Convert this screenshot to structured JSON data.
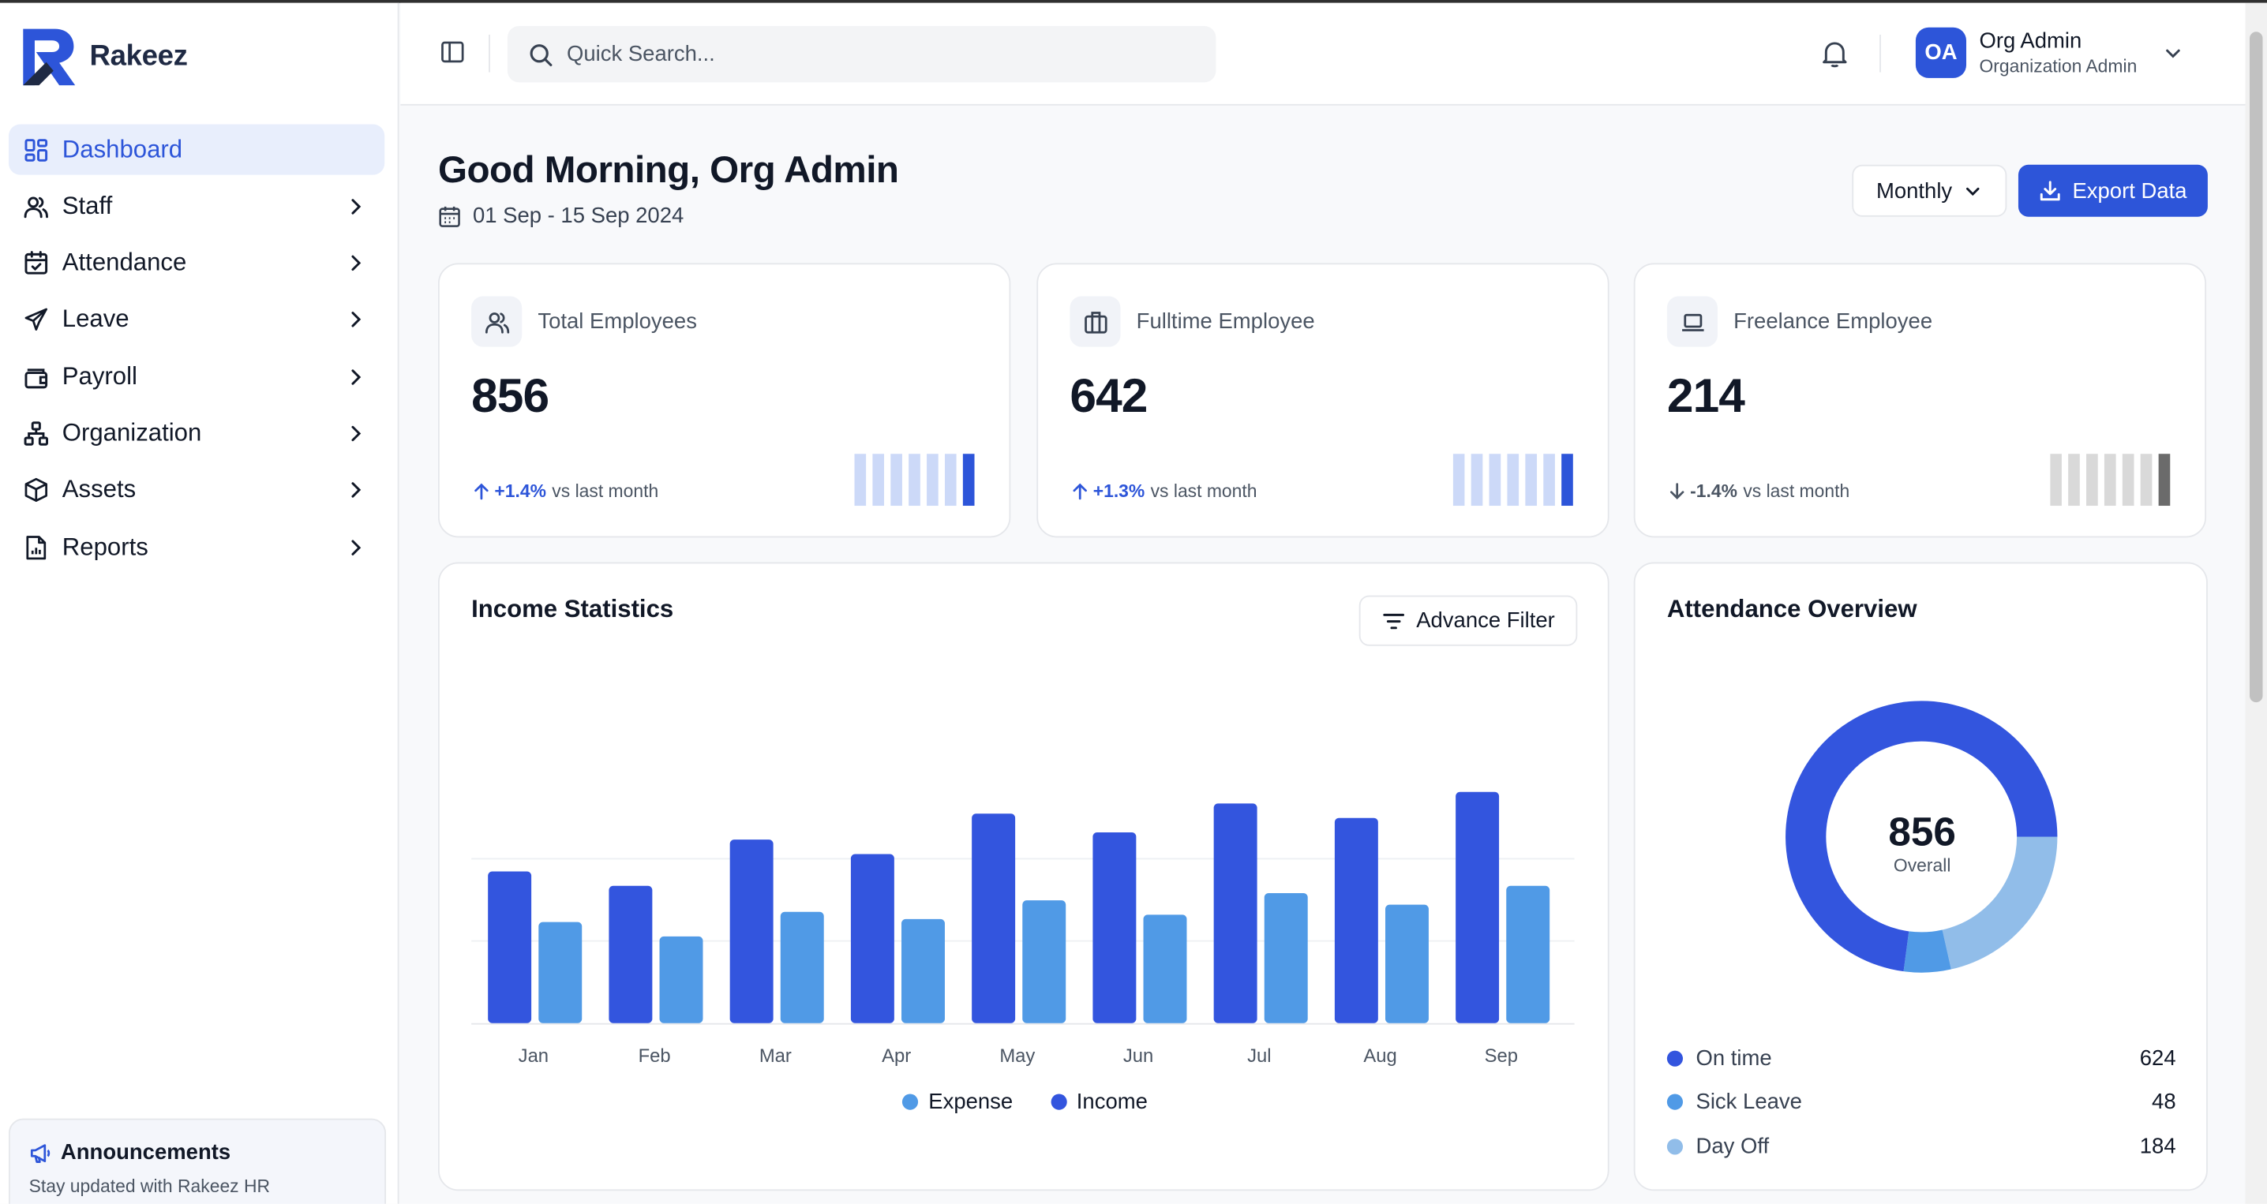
{
  "brand": {
    "name": "Rakeez"
  },
  "sidebar": {
    "items": [
      {
        "label": "Dashboard",
        "icon": "dashboard-icon",
        "active": true
      },
      {
        "label": "Staff",
        "icon": "users-icon"
      },
      {
        "label": "Attendance",
        "icon": "calendar-check-icon"
      },
      {
        "label": "Leave",
        "icon": "plane-icon"
      },
      {
        "label": "Payroll",
        "icon": "wallet-icon"
      },
      {
        "label": "Organization",
        "icon": "org-chart-icon"
      },
      {
        "label": "Assets",
        "icon": "box-icon"
      },
      {
        "label": "Reports",
        "icon": "report-icon"
      }
    ],
    "announcement": {
      "title": "Announcements",
      "subtitle": "Stay updated with Rakeez HR"
    }
  },
  "topbar": {
    "search_placeholder": "Quick Search...",
    "user": {
      "initials": "OA",
      "name": "Org Admin",
      "role": "Organization Admin"
    }
  },
  "header": {
    "greeting": "Good Morning, Org Admin",
    "date_range": "01 Sep - 15 Sep 2024",
    "period": "Monthly",
    "export_label": "Export Data"
  },
  "stats": [
    {
      "label": "Total Employees",
      "value": "856",
      "change": "+1.4%",
      "suffix": "vs last month",
      "direction": "up",
      "color": "#2d55d9",
      "icon": "users-icon"
    },
    {
      "label": "Fulltime Employee",
      "value": "642",
      "change": "+1.3%",
      "suffix": "vs last month",
      "direction": "up",
      "color": "#2d55d9",
      "icon": "briefcase-icon"
    },
    {
      "label": "Freelance Employee",
      "value": "214",
      "change": "-1.4%",
      "suffix": "vs last month",
      "direction": "down",
      "color": "#6b7280",
      "icon": "laptop-icon"
    }
  ],
  "income": {
    "title": "Income Statistics",
    "filter_label": "Advance Filter"
  },
  "chart_data": {
    "type": "bar",
    "categories": [
      "Jan",
      "Feb",
      "Mar",
      "Apr",
      "May",
      "Jun",
      "Jul",
      "Aug",
      "Sep"
    ],
    "series": [
      {
        "name": "Income",
        "color": "#3355de",
        "values": [
          105,
          95,
          127,
          117,
          145,
          132,
          152,
          142,
          160
        ]
      },
      {
        "name": "Expense",
        "color": "#509ae6",
        "values": [
          70,
          60,
          77,
          72,
          85,
          75,
          90,
          82,
          95
        ]
      }
    ],
    "legend": [
      "Expense",
      "Income"
    ],
    "legend_position": "bottom",
    "ylim": [
      0,
      175
    ],
    "grid": true
  },
  "attendance": {
    "title": "Attendance Overview",
    "total": "856",
    "total_label": "Overall",
    "items": [
      {
        "label": "On time",
        "value": 624,
        "color": "#3355de"
      },
      {
        "label": "Sick Leave",
        "value": 48,
        "color": "#509ae6"
      },
      {
        "label": "Day Off",
        "value": 184,
        "color": "#91bde9"
      }
    ]
  }
}
